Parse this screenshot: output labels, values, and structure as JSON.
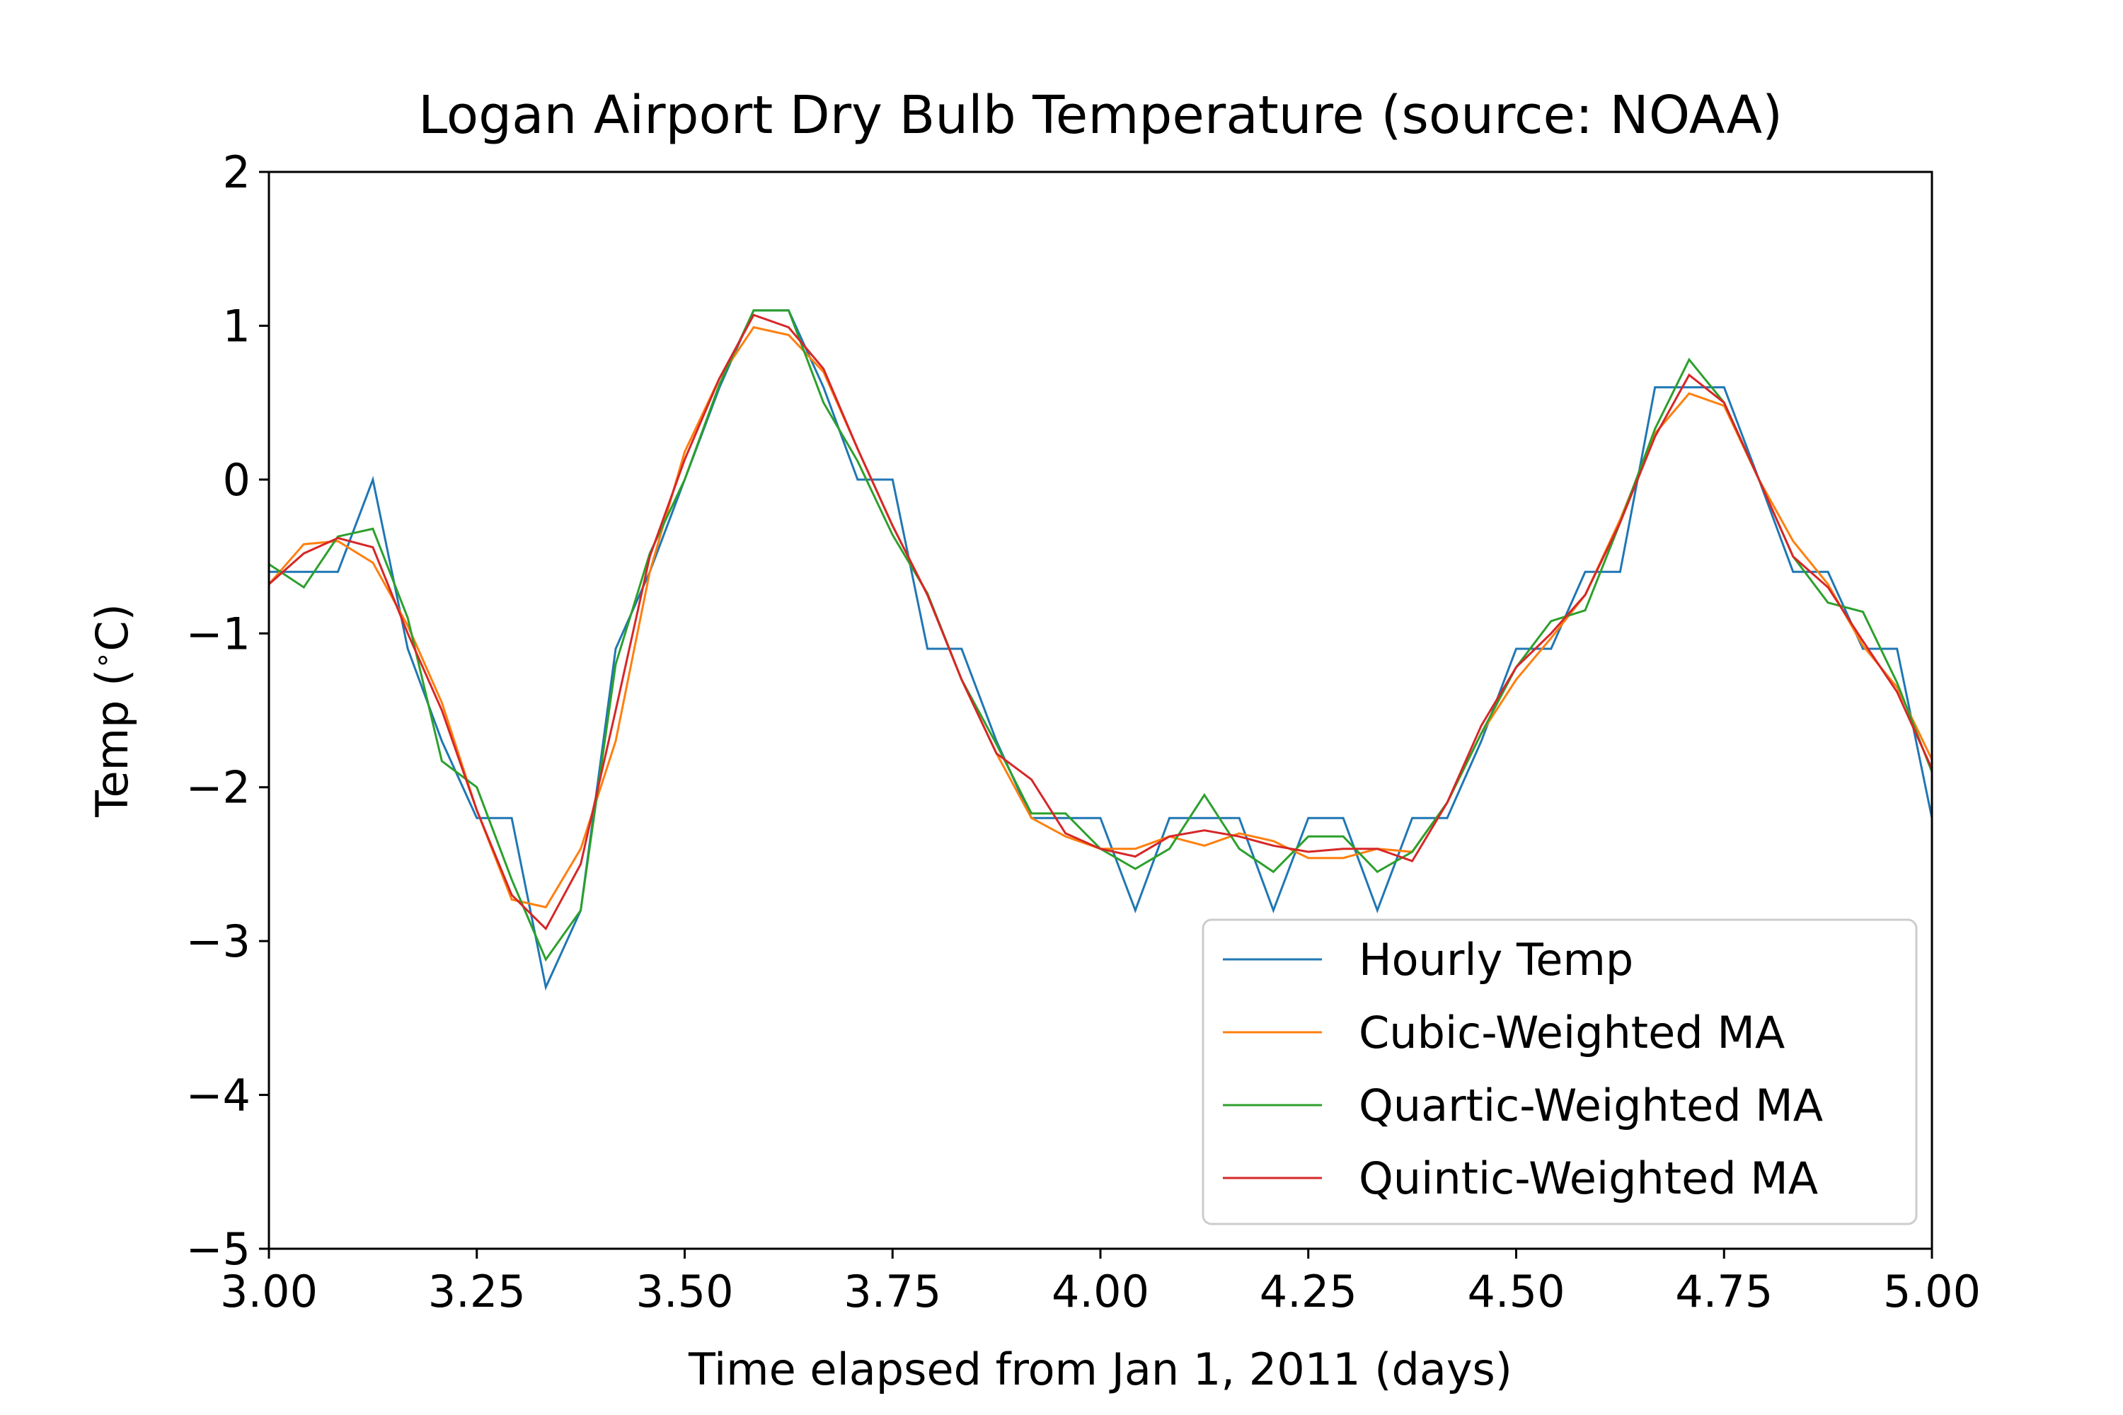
{
  "chart_data": {
    "type": "line",
    "title": "Logan Airport Dry Bulb Temperature (source: NOAA)",
    "xlabel": "Time elapsed from Jan 1, 2011 (days)",
    "ylabel": "Temp ($^\\circ$C)",
    "ylabel_parts": {
      "prefix": "Temp (",
      "degree": "∘",
      "suffix": "C)"
    },
    "xlim": [
      3.0,
      5.0
    ],
    "ylim": [
      -5,
      2
    ],
    "xticks": [
      3.0,
      3.25,
      3.5,
      3.75,
      4.0,
      4.25,
      4.5,
      4.75,
      5.0
    ],
    "xtick_labels": [
      "3.00",
      "3.25",
      "3.50",
      "3.75",
      "4.00",
      "4.25",
      "4.50",
      "4.75",
      "5.00"
    ],
    "yticks": [
      -5,
      -4,
      -3,
      -2,
      -1,
      0,
      1,
      2
    ],
    "ytick_labels": [
      "−5",
      "−4",
      "−3",
      "−2",
      "−1",
      "0",
      "1",
      "2"
    ],
    "grid": false,
    "legend_position": "lower-right",
    "x": [
      3.0,
      3.042,
      3.083,
      3.125,
      3.167,
      3.208,
      3.25,
      3.292,
      3.333,
      3.375,
      3.417,
      3.458,
      3.5,
      3.542,
      3.583,
      3.625,
      3.667,
      3.708,
      3.75,
      3.792,
      3.833,
      3.875,
      3.917,
      3.958,
      4.0,
      4.042,
      4.083,
      4.125,
      4.167,
      4.208,
      4.25,
      4.292,
      4.333,
      4.375,
      4.417,
      4.458,
      4.5,
      4.542,
      4.583,
      4.625,
      4.667,
      4.708,
      4.75,
      4.792,
      4.833,
      4.875,
      4.917,
      4.958,
      5.0
    ],
    "series": [
      {
        "name": "Hourly Temp",
        "color": "#1f77b4",
        "values": [
          -0.6,
          -0.6,
          -0.6,
          0.0,
          -1.1,
          -1.7,
          -2.2,
          -2.2,
          -3.3,
          -2.8,
          -1.1,
          -0.6,
          0.0,
          0.6,
          1.1,
          1.1,
          0.6,
          0.0,
          0.0,
          -1.1,
          -1.1,
          -1.7,
          -2.2,
          -2.2,
          -2.2,
          -2.8,
          -2.2,
          -2.2,
          -2.2,
          -2.8,
          -2.2,
          -2.2,
          -2.8,
          -2.2,
          -2.2,
          -1.7,
          -1.1,
          -1.1,
          -0.6,
          -0.6,
          0.6,
          0.6,
          0.6,
          0.0,
          -0.6,
          -0.6,
          -1.1,
          -1.1,
          -2.2
        ]
      },
      {
        "name": "Cubic-Weighted MA",
        "color": "#ff7f0e",
        "values": [
          -0.68,
          -0.42,
          -0.4,
          -0.54,
          -0.95,
          -1.45,
          -2.15,
          -2.73,
          -2.78,
          -2.4,
          -1.7,
          -0.6,
          0.18,
          0.66,
          0.99,
          0.94,
          0.7,
          0.2,
          -0.3,
          -0.75,
          -1.3,
          -1.78,
          -2.2,
          -2.32,
          -2.4,
          -2.4,
          -2.32,
          -2.38,
          -2.3,
          -2.35,
          -2.46,
          -2.46,
          -2.4,
          -2.42,
          -2.1,
          -1.65,
          -1.3,
          -1.03,
          -0.75,
          -0.26,
          0.3,
          0.56,
          0.48,
          0.0,
          -0.4,
          -0.68,
          -1.08,
          -1.35,
          -1.82
        ]
      },
      {
        "name": "Quartic-Weighted MA",
        "color": "#2ca02c",
        "values": [
          -0.55,
          -0.7,
          -0.37,
          -0.32,
          -0.9,
          -1.83,
          -2.0,
          -2.6,
          -3.12,
          -2.8,
          -1.2,
          -0.48,
          0.0,
          0.62,
          1.1,
          1.1,
          0.5,
          0.12,
          -0.36,
          -0.74,
          -1.3,
          -1.72,
          -2.17,
          -2.17,
          -2.4,
          -2.53,
          -2.4,
          -2.05,
          -2.4,
          -2.55,
          -2.32,
          -2.32,
          -2.55,
          -2.42,
          -2.1,
          -1.65,
          -1.22,
          -0.92,
          -0.85,
          -0.28,
          0.33,
          0.78,
          0.5,
          0.0,
          -0.5,
          -0.8,
          -0.86,
          -1.32,
          -1.9
        ]
      },
      {
        "name": "Quintic-Weighted MA",
        "color": "#d62728",
        "values": [
          -0.68,
          -0.48,
          -0.38,
          -0.44,
          -1.0,
          -1.5,
          -2.15,
          -2.7,
          -2.92,
          -2.5,
          -1.5,
          -0.5,
          0.13,
          0.66,
          1.07,
          0.99,
          0.72,
          0.2,
          -0.3,
          -0.75,
          -1.3,
          -1.78,
          -1.95,
          -2.3,
          -2.4,
          -2.45,
          -2.32,
          -2.28,
          -2.32,
          -2.38,
          -2.42,
          -2.4,
          -2.4,
          -2.48,
          -2.1,
          -1.6,
          -1.22,
          -1.0,
          -0.75,
          -0.28,
          0.28,
          0.68,
          0.5,
          0.0,
          -0.5,
          -0.7,
          -1.05,
          -1.38,
          -1.88
        ]
      }
    ]
  }
}
